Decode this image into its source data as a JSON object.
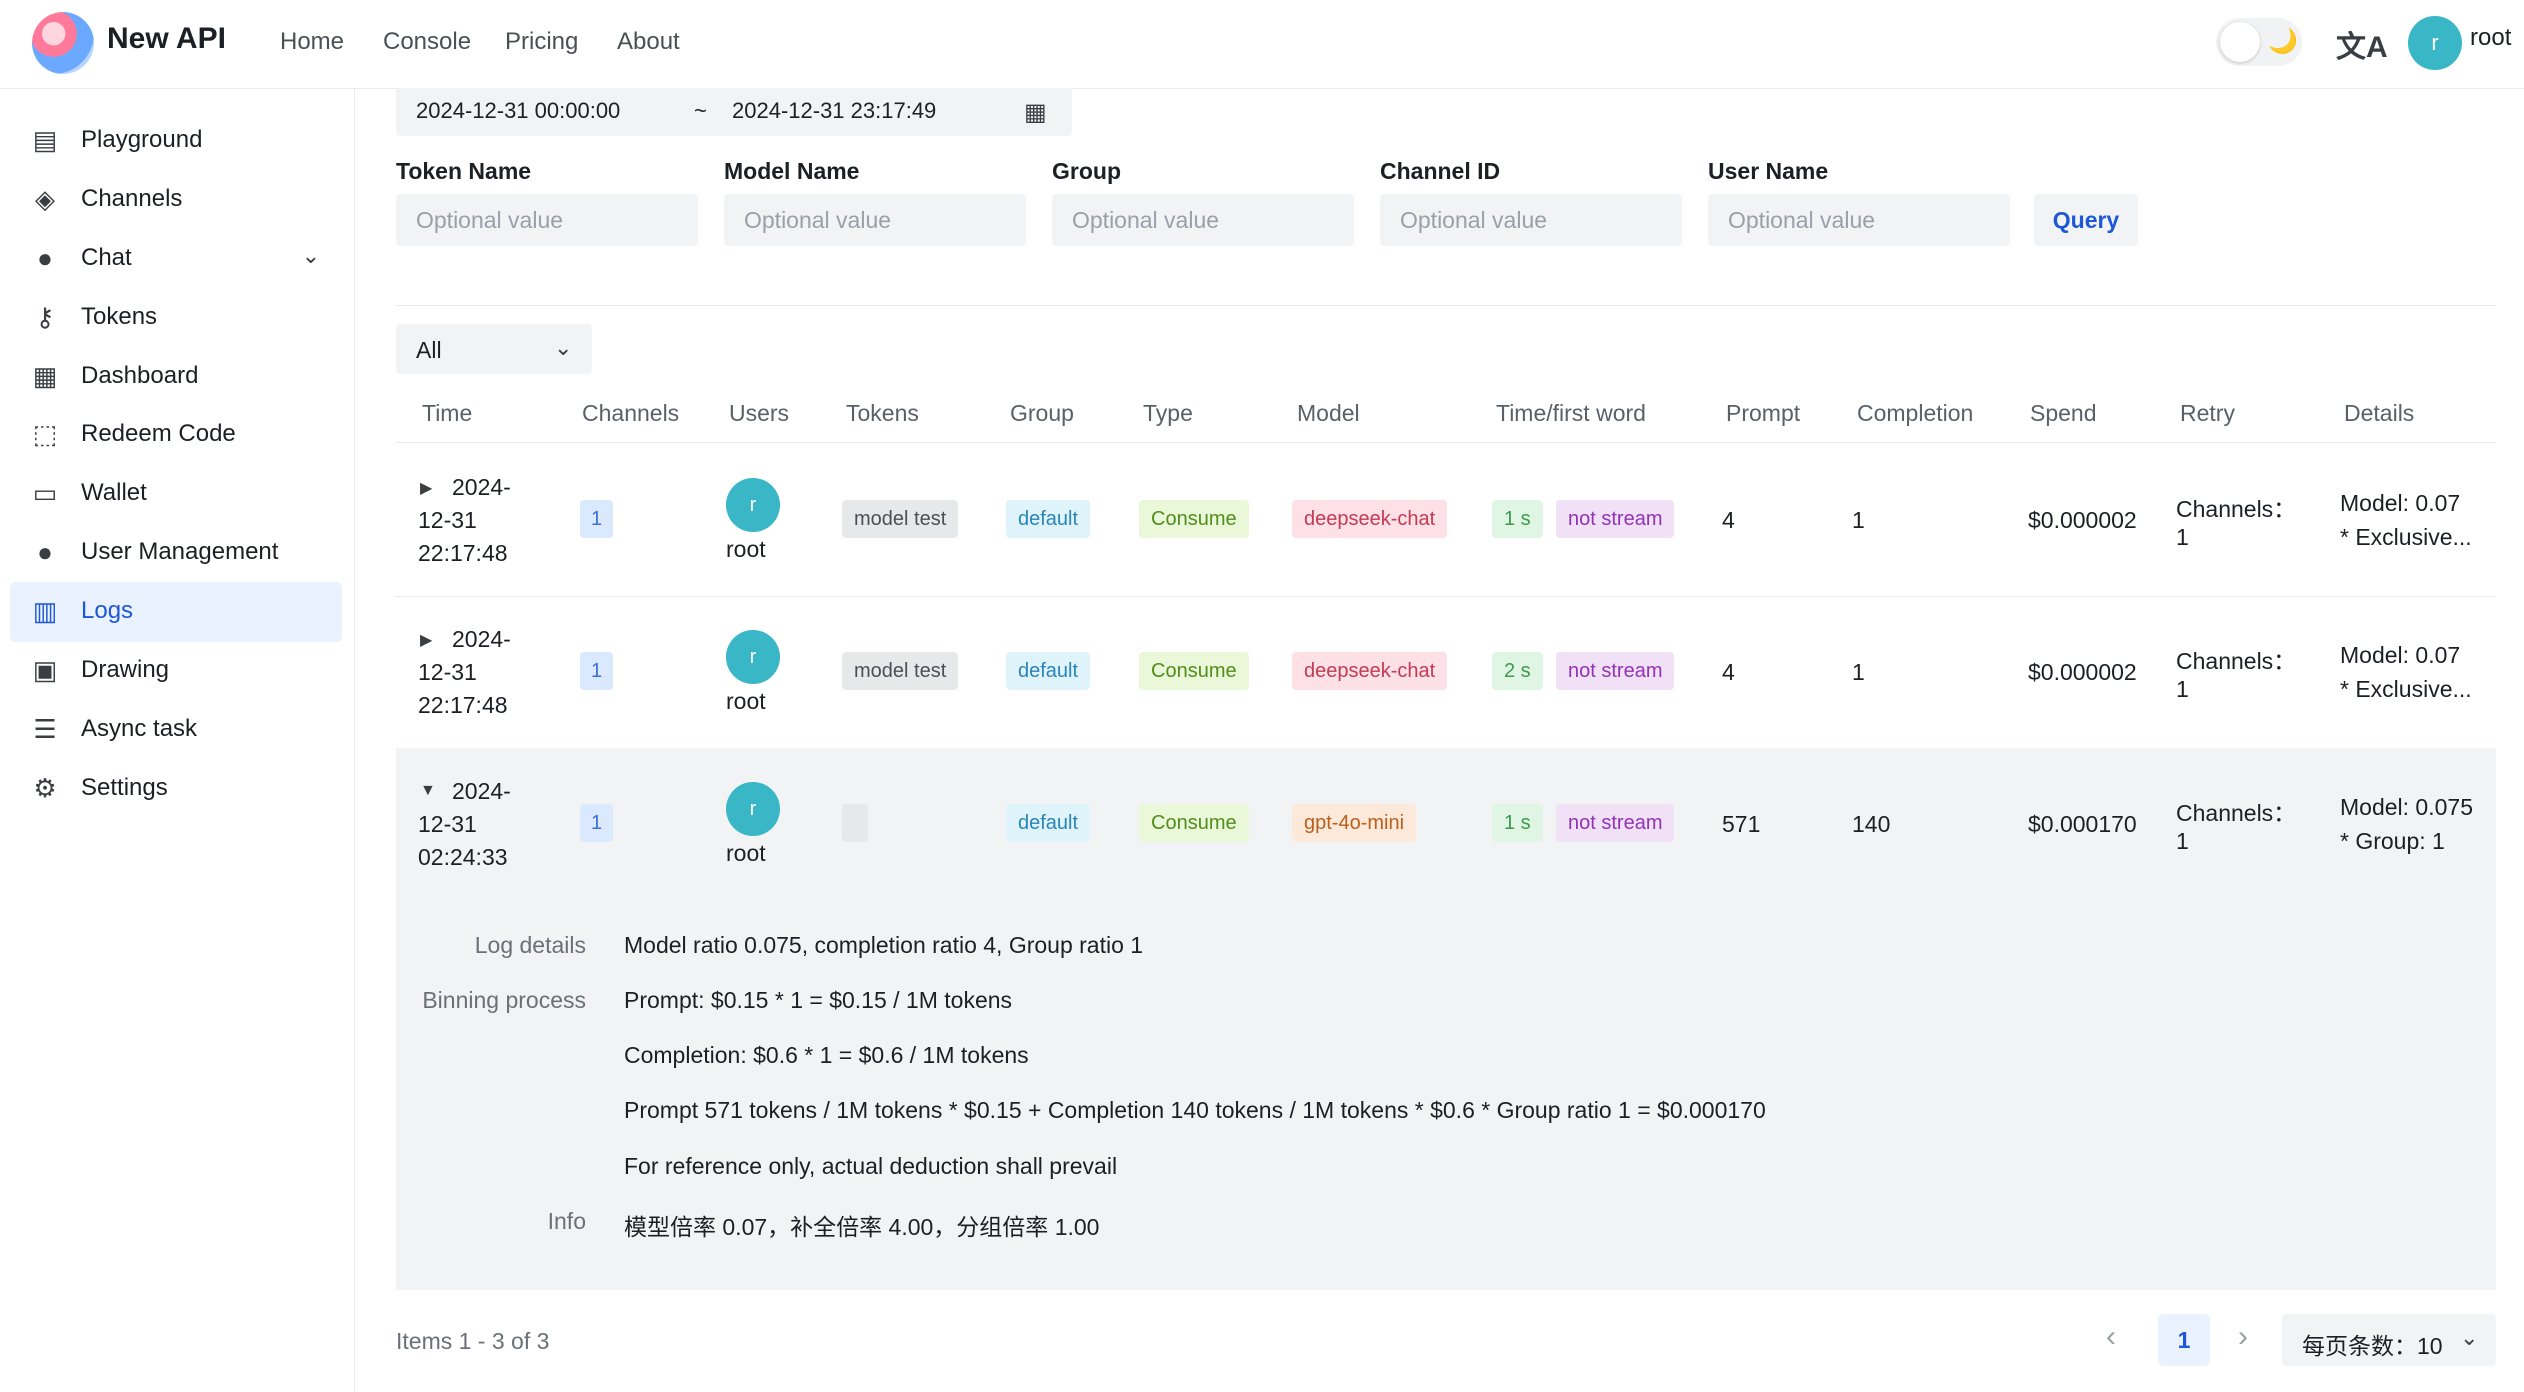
{
  "app": {
    "name": "New API"
  },
  "nav": [
    "Home",
    "Console",
    "Pricing",
    "About"
  ],
  "header": {
    "theme_moon": "🌙",
    "lang_icon": "文A",
    "avatar_letter": "r",
    "username": "root"
  },
  "sidebar": {
    "items": [
      {
        "label": "Playground",
        "icon": "chat-square-icon",
        "glyph": "▤"
      },
      {
        "label": "Channels",
        "icon": "layers-icon",
        "glyph": "◈"
      },
      {
        "label": "Chat",
        "icon": "chat-bubble-icon",
        "glyph": "●",
        "chevron": "⌄"
      },
      {
        "label": "Tokens",
        "icon": "key-icon",
        "glyph": "⚷"
      },
      {
        "label": "Dashboard",
        "icon": "calendar-icon",
        "glyph": "▦"
      },
      {
        "label": "Redeem Code",
        "icon": "gift-icon",
        "glyph": "⬚"
      },
      {
        "label": "Wallet",
        "icon": "credit-card-icon",
        "glyph": "▭"
      },
      {
        "label": "User Management",
        "icon": "user-icon",
        "glyph": "●"
      },
      {
        "label": "Logs",
        "icon": "bar-chart-icon",
        "glyph": "▥",
        "active": true
      },
      {
        "label": "Drawing",
        "icon": "image-icon",
        "glyph": "▣"
      },
      {
        "label": "Async task",
        "icon": "task-list-icon",
        "glyph": "☰"
      },
      {
        "label": "Settings",
        "icon": "gear-icon",
        "glyph": "⚙"
      }
    ]
  },
  "filters": {
    "date_start": "2024-12-31 00:00:00",
    "date_sep": "~",
    "date_end": "2024-12-31 23:17:49",
    "date_icon": "▦",
    "fields": [
      {
        "label": "Token Name",
        "placeholder": "Optional value"
      },
      {
        "label": "Model Name",
        "placeholder": "Optional value"
      },
      {
        "label": "Group",
        "placeholder": "Optional value"
      },
      {
        "label": "Channel ID",
        "placeholder": "Optional value"
      },
      {
        "label": "User Name",
        "placeholder": "Optional value"
      }
    ],
    "query_label": "Query",
    "type_select": "All",
    "chevron": "⌄"
  },
  "table": {
    "headers": [
      "Time",
      "Channels",
      "Users",
      "Tokens",
      "Group",
      "Type",
      "Model",
      "Time/first word",
      "Prompt",
      "Completion",
      "Spend",
      "Retry",
      "Details"
    ],
    "rows": [
      {
        "caret": "▶",
        "time": [
          "2024-",
          "12-31",
          "22:17:48"
        ],
        "channel": "1",
        "avatar": "r",
        "user": "root",
        "token": "model test",
        "group": "default",
        "type": "Consume",
        "model": "deepseek-chat",
        "duration": "1 s",
        "stream": "not stream",
        "prompt": "4",
        "completion": "1",
        "spend": "$0.000002",
        "retry": [
          "Channels：",
          "1"
        ],
        "details": [
          "Model: 0.07",
          "* Exclusive..."
        ]
      },
      {
        "caret": "▶",
        "time": [
          "2024-",
          "12-31",
          "22:17:48"
        ],
        "channel": "1",
        "avatar": "r",
        "user": "root",
        "token": "model test",
        "group": "default",
        "type": "Consume",
        "model": "deepseek-chat",
        "duration": "2 s",
        "stream": "not stream",
        "prompt": "4",
        "completion": "1",
        "spend": "$0.000002",
        "retry": [
          "Channels：",
          "1"
        ],
        "details": [
          "Model: 0.07",
          "* Exclusive..."
        ]
      },
      {
        "caret": "▼",
        "time": [
          "2024-",
          "12-31",
          "02:24:33"
        ],
        "channel": "1",
        "avatar": "r",
        "user": "root",
        "token": "",
        "group": "default",
        "type": "Consume",
        "model": "gpt-4o-mini",
        "duration": "1 s",
        "stream": "not stream",
        "prompt": "571",
        "completion": "140",
        "spend": "$0.000170",
        "retry": [
          "Channels：",
          "1"
        ],
        "details": [
          "Model: 0.075",
          "* Group: 1"
        ]
      }
    ]
  },
  "expanded": {
    "log_details_label": "Log details",
    "log_details": "Model ratio 0.075, completion ratio 4, Group ratio 1",
    "billing_label": "Binning process",
    "billing_lines": [
      "Prompt: $0.15 * 1 = $0.15 / 1M tokens",
      "Completion: $0.6 * 1 = $0.6 / 1M tokens",
      "Prompt 571 tokens / 1M tokens * $0.15 + Completion 140 tokens / 1M tokens * $0.6 * Group ratio 1 = $0.000170",
      "For reference only, actual deduction shall prevail"
    ],
    "info_label": "Info",
    "info": "模型倍率 0.07，补全倍率 4.00，分组倍率 1.00"
  },
  "pagination": {
    "items_text": "Items 1 - 3 of 3",
    "prev": "‹",
    "current": "1",
    "next": "›",
    "page_size": "每页条数：10"
  },
  "colors": {
    "accent": "#1d58d6",
    "avatar": "#39b7c7"
  }
}
